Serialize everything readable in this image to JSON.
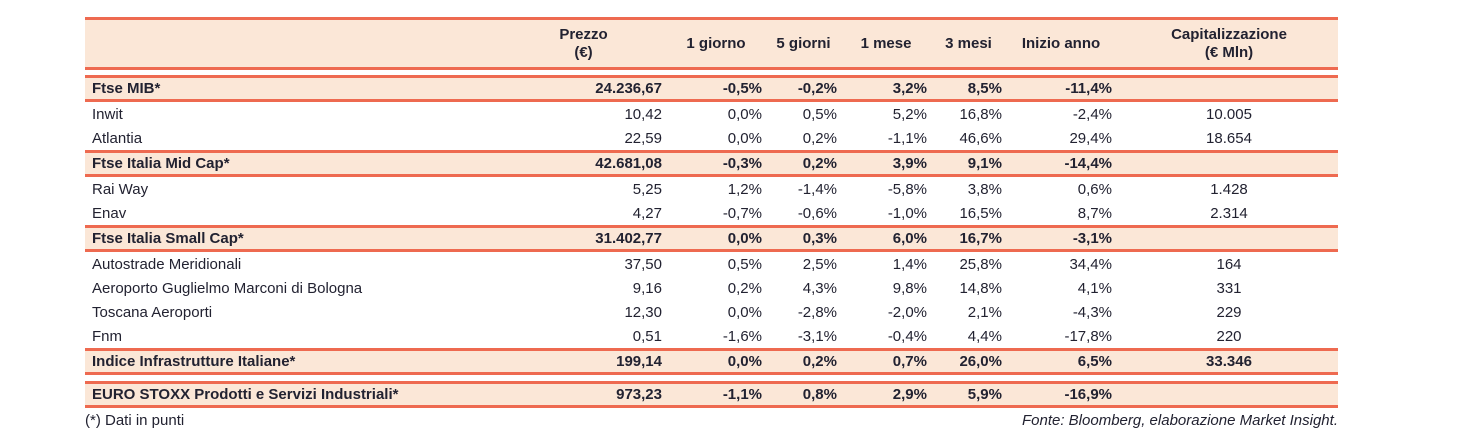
{
  "colors": {
    "accent_line": "#EE6A50",
    "band_background": "#FBE7D7",
    "text": "#222231"
  },
  "table": {
    "header": [
      "Prezzo\n(€)",
      "1 giorno",
      "5 giorni",
      "1 mese",
      "3 mesi",
      "Inizio anno",
      "Capitalizzazione\n(€ Mln)"
    ],
    "rows": [
      {
        "type": "index",
        "name": "Ftse MIB*",
        "values": [
          "24.236,67",
          "-0,5%",
          "-0,2%",
          "3,2%",
          "8,5%",
          "-11,4%",
          ""
        ]
      },
      {
        "type": "stock",
        "name": "Inwit",
        "values": [
          "10,42",
          "0,0%",
          "0,5%",
          "5,2%",
          "16,8%",
          "-2,4%",
          "10.005"
        ]
      },
      {
        "type": "stock",
        "name": "Atlantia",
        "values": [
          "22,59",
          "0,0%",
          "0,2%",
          "-1,1%",
          "46,6%",
          "29,4%",
          "18.654"
        ]
      },
      {
        "type": "index",
        "name": "Ftse Italia Mid Cap*",
        "values": [
          "42.681,08",
          "-0,3%",
          "0,2%",
          "3,9%",
          "9,1%",
          "-14,4%",
          ""
        ]
      },
      {
        "type": "stock",
        "name": "Rai Way",
        "values": [
          "5,25",
          "1,2%",
          "-1,4%",
          "-5,8%",
          "3,8%",
          "0,6%",
          "1.428"
        ]
      },
      {
        "type": "stock",
        "name": "Enav",
        "values": [
          "4,27",
          "-0,7%",
          "-0,6%",
          "-1,0%",
          "16,5%",
          "8,7%",
          "2.314"
        ]
      },
      {
        "type": "index",
        "name": "Ftse Italia Small Cap*",
        "values": [
          "31.402,77",
          "0,0%",
          "0,3%",
          "6,0%",
          "16,7%",
          "-3,1%",
          ""
        ]
      },
      {
        "type": "stock",
        "name": "Autostrade Meridionali",
        "values": [
          "37,50",
          "0,5%",
          "2,5%",
          "1,4%",
          "25,8%",
          "34,4%",
          "164"
        ]
      },
      {
        "type": "stock",
        "name": "Aeroporto Guglielmo Marconi di Bologna",
        "values": [
          "9,16",
          "0,2%",
          "4,3%",
          "9,8%",
          "14,8%",
          "4,1%",
          "331"
        ]
      },
      {
        "type": "stock",
        "name": "Toscana Aeroporti",
        "values": [
          "12,30",
          "0,0%",
          "-2,8%",
          "-2,0%",
          "2,1%",
          "-4,3%",
          "229"
        ]
      },
      {
        "type": "stock",
        "name": "Fnm",
        "values": [
          "0,51",
          "-1,6%",
          "-3,1%",
          "-0,4%",
          "4,4%",
          "-17,8%",
          "220"
        ]
      },
      {
        "type": "index",
        "name": "Indice Infrastrutture Italiane*",
        "values": [
          "199,14",
          "0,0%",
          "0,2%",
          "0,7%",
          "26,0%",
          "6,5%",
          "33.346"
        ]
      },
      {
        "type": "index",
        "separated": true,
        "name": "EURO STOXX Prodotti e Servizi Industriali*",
        "values": [
          "973,23",
          "-1,1%",
          "0,8%",
          "2,9%",
          "5,9%",
          "-16,9%",
          ""
        ]
      }
    ]
  },
  "footer": {
    "note": "(*) Dati in punti",
    "source": "Fonte: Bloomberg, elaborazione Market Insight."
  }
}
